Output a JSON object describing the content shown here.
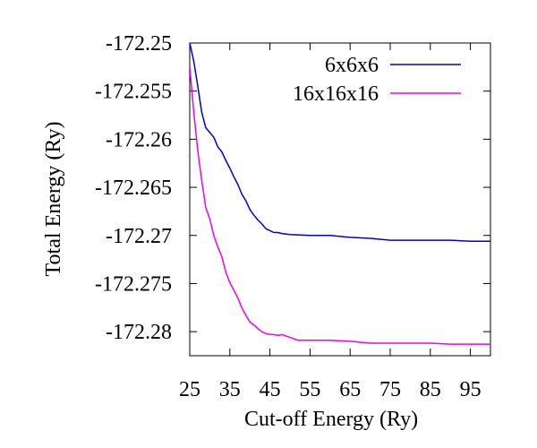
{
  "chart_data": {
    "type": "line",
    "xlabel": "Cut-off Energy (Ry)",
    "ylabel": "Total Energy (Ry)",
    "xlim": [
      25,
      100
    ],
    "ylim": [
      -172.2825,
      -172.25
    ],
    "xticks": [
      25,
      35,
      45,
      55,
      65,
      75,
      85,
      95
    ],
    "yticks": [
      -172.25,
      -172.255,
      -172.26,
      -172.265,
      -172.27,
      -172.275,
      -172.28
    ],
    "xtick_labels": [
      "25",
      "35",
      "45",
      "55",
      "65",
      "75",
      "85",
      "95"
    ],
    "ytick_labels": [
      "-172.25",
      "-172.255",
      "-172.26",
      "-172.265",
      "-172.27",
      "-172.275",
      "-172.28"
    ],
    "grid": false,
    "legend_position": "top-right",
    "series": [
      {
        "name": "6x6x6",
        "color": "#0000cc",
        "x": [
          25,
          26,
          27,
          28,
          29,
          30,
          31,
          32,
          33,
          34,
          35,
          36,
          37,
          38,
          39,
          40,
          41,
          42,
          43,
          44,
          45,
          46,
          47,
          48,
          50,
          55,
          60,
          65,
          70,
          75,
          80,
          85,
          90,
          95,
          100
        ],
        "y": [
          -172.25,
          -172.2519,
          -172.2545,
          -172.2572,
          -172.2588,
          -172.2593,
          -172.2598,
          -172.2608,
          -172.2613,
          -172.2622,
          -172.263,
          -172.2639,
          -172.2647,
          -172.2657,
          -172.2664,
          -172.2673,
          -172.2679,
          -172.2684,
          -172.2688,
          -172.2693,
          -172.2695,
          -172.2697,
          -172.2697,
          -172.2698,
          -172.2699,
          -172.27,
          -172.27,
          -172.2702,
          -172.2703,
          -172.2705,
          -172.2705,
          -172.2705,
          -172.2705,
          -172.2706,
          -172.2706
        ]
      },
      {
        "name": "16x16x16",
        "color": "#ee00ee",
        "x": [
          25,
          26,
          27,
          28,
          29,
          30,
          31,
          32,
          33,
          34,
          35,
          36,
          37,
          38,
          39,
          40,
          41,
          42,
          43,
          44,
          45,
          46,
          47,
          48,
          50,
          52,
          55,
          60,
          65,
          70,
          75,
          80,
          85,
          90,
          95,
          100
        ],
        "y": [
          -172.2525,
          -172.2572,
          -172.2612,
          -172.2643,
          -172.2671,
          -172.2683,
          -172.27,
          -172.2712,
          -172.2722,
          -172.2738,
          -172.2749,
          -172.2757,
          -172.2765,
          -172.2775,
          -172.2783,
          -172.279,
          -172.2793,
          -172.2797,
          -172.28,
          -172.2802,
          -172.2803,
          -172.2803,
          -172.2804,
          -172.2803,
          -172.2806,
          -172.2809,
          -172.2809,
          -172.2809,
          -172.281,
          -172.2812,
          -172.2812,
          -172.2812,
          -172.2812,
          -172.2813,
          -172.2813,
          -172.2813
        ]
      }
    ]
  }
}
